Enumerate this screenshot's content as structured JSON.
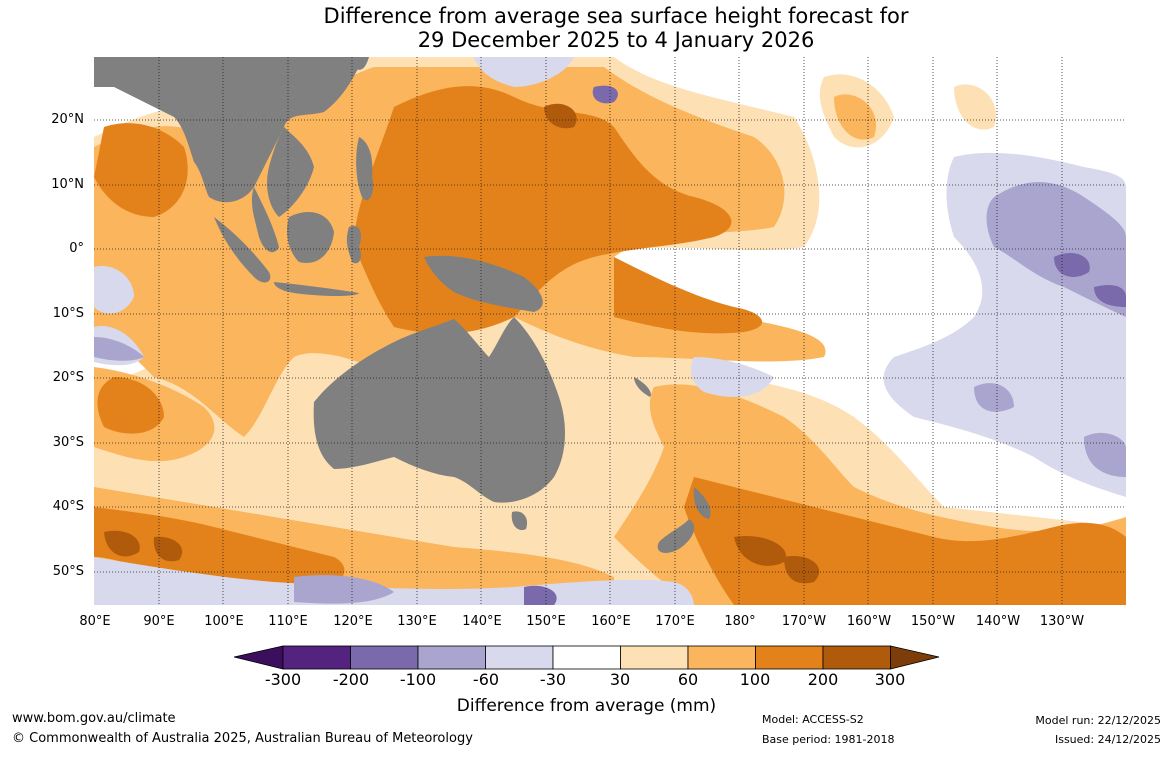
{
  "title": {
    "line1": "Difference from average sea surface height forecast for",
    "line2": "29 December 2025 to 4 January 2026"
  },
  "map": {
    "region": "Indo-Pacific",
    "lat_labels": [
      "20°N",
      "10°N",
      "0°",
      "10°S",
      "20°S",
      "30°S",
      "40°S",
      "50°S"
    ],
    "lon_labels": [
      "80°E",
      "90°E",
      "100°E",
      "110°E",
      "120°E",
      "130°E",
      "140°E",
      "150°E",
      "160°E",
      "170°E",
      "180°",
      "170°W",
      "160°W",
      "150°W",
      "140°W",
      "130°W"
    ],
    "land_color": "#808080",
    "grid_style": "dotted"
  },
  "legend": {
    "ticks": [
      "-300",
      "-200",
      "-100",
      "-60",
      "-30",
      "30",
      "60",
      "100",
      "200",
      "300"
    ],
    "colors": [
      "#3b0f5e",
      "#54237f",
      "#7a6aab",
      "#aaa5cf",
      "#d8d9ec",
      "#ffffff",
      "#fde0b4",
      "#fbb55c",
      "#e3821a",
      "#b05a0c",
      "#7d3d0a"
    ],
    "title": "Difference from average (mm)"
  },
  "footer": {
    "website": "www.bom.gov.au/climate",
    "copyright": "© Commonwealth of Australia 2025, Australian Bureau of Meteorology",
    "model": "Model: ACCESS-S2",
    "base_period": "Base period: 1981-2018",
    "model_run": "Model run: 22/12/2025",
    "issued": "Issued: 24/12/2025"
  }
}
